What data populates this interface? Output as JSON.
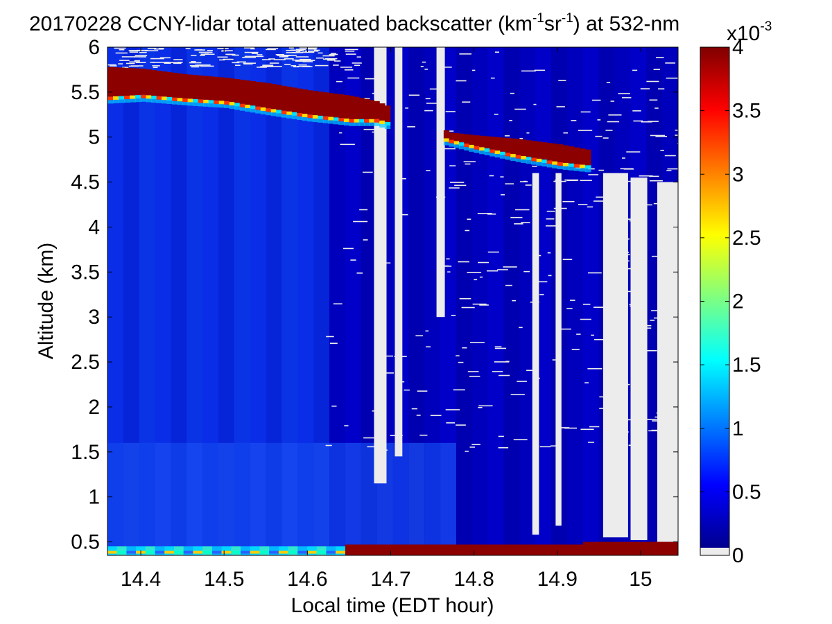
{
  "chart_data": {
    "type": "heatmap",
    "title": {
      "prefix": "20170228 CCNY-lidar total attenuated backscatter (km",
      "exp1": "-1",
      "mid": "sr",
      "exp2": "-1",
      "suffix": ") at 532-nm"
    },
    "xlabel": "Local time (EDT hour)",
    "ylabel": "Altitude (km)",
    "xlim": [
      14.36,
      15.045
    ],
    "ylim": [
      0.35,
      6.0
    ],
    "x_ticks": [
      14.4,
      14.5,
      14.6,
      14.7,
      14.8,
      14.9,
      15.0
    ],
    "x_tick_labels": [
      "14.4",
      "14.5",
      "14.6",
      "14.7",
      "14.8",
      "14.9",
      "15"
    ],
    "y_ticks": [
      0.5,
      1,
      1.5,
      2,
      2.5,
      3,
      3.5,
      4,
      4.5,
      5,
      5.5,
      6
    ],
    "y_tick_labels": [
      "0.5",
      "1",
      "1.5",
      "2",
      "2.5",
      "3",
      "3.5",
      "4",
      "4.5",
      "5",
      "5.5",
      "6"
    ],
    "colorbar": {
      "min": 0,
      "max": 4,
      "ticks": [
        0,
        0.5,
        1,
        1.5,
        2,
        2.5,
        3,
        3.5,
        4
      ],
      "tick_labels": [
        "0",
        "0.5",
        "1",
        "1.5",
        "2",
        "2.5",
        "3",
        "3.5",
        "4"
      ],
      "scale_base": "x10",
      "scale_exp": "-3",
      "colormap": "jet",
      "missing_color": "#ececec"
    },
    "cloud_layer": {
      "x": [
        14.36,
        14.4,
        14.45,
        14.5,
        14.55,
        14.6,
        14.65,
        14.68,
        14.77,
        14.8,
        14.85,
        14.9,
        14.94
      ],
      "base": [
        5.45,
        5.47,
        5.43,
        5.4,
        5.32,
        5.25,
        5.2,
        5.2,
        4.97,
        4.9,
        4.8,
        4.72,
        4.68
      ],
      "top": [
        5.78,
        5.76,
        5.7,
        5.66,
        5.6,
        5.52,
        5.46,
        5.4,
        5.05,
        5.02,
        4.98,
        4.92,
        4.85
      ]
    },
    "units_note": "values in 10^-3 km^-1 sr^-1"
  }
}
